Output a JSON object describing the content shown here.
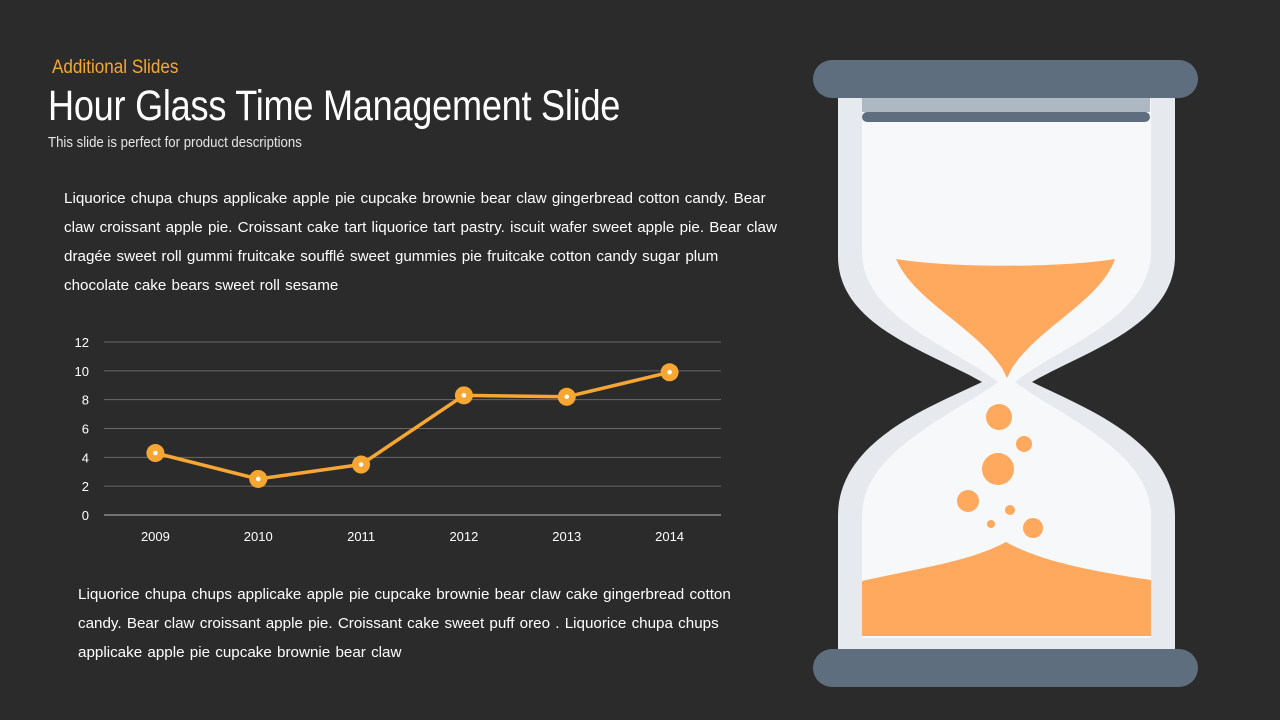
{
  "header": {
    "section_label": "Additional Slides",
    "title": "Hour Glass Time Management Slide",
    "subtitle": "This slide is perfect for product descriptions"
  },
  "body": {
    "paragraph_1": "Liquorice chupa chups applicake apple pie cupcake brownie bear claw gingerbread cotton candy. Bear claw croissant apple pie. Croissant cake tart liquorice tart pastry. iscuit wafer sweet apple pie. Bear claw dragée sweet roll gummi fruitcake soufflé sweet gummies pie fruitcake cotton candy sugar plum chocolate cake bears sweet roll sesame",
    "paragraph_2": "Liquorice chupa chups applicake apple pie cupcake brownie bear claw  cake gingerbread cotton candy. Bear claw croissant apple pie. Croissant cake sweet puff oreo . Liquorice chupa chups applicake apple pie cupcake brownie bear claw"
  },
  "colors": {
    "accent": "#f6a733",
    "background": "#2b2b2b",
    "sand": "#ffa95e",
    "glass_frame": "#5f6e7e",
    "glass_rim": "#e6e9ee",
    "glass_inner": "#f7f8fa"
  },
  "chart_data": {
    "type": "line",
    "categories": [
      "2009",
      "2010",
      "2011",
      "2012",
      "2013",
      "2014"
    ],
    "series": [
      {
        "values": [
          4.3,
          2.5,
          3.5,
          8.3,
          8.2,
          9.9
        ]
      }
    ],
    "yticks": [
      0,
      2,
      4,
      6,
      8,
      10,
      12
    ],
    "ylim": [
      0,
      12
    ],
    "grid": true,
    "legend": "none",
    "title": "",
    "xlabel": "",
    "ylabel": ""
  },
  "illustration": {
    "icon": "hourglass-icon"
  }
}
